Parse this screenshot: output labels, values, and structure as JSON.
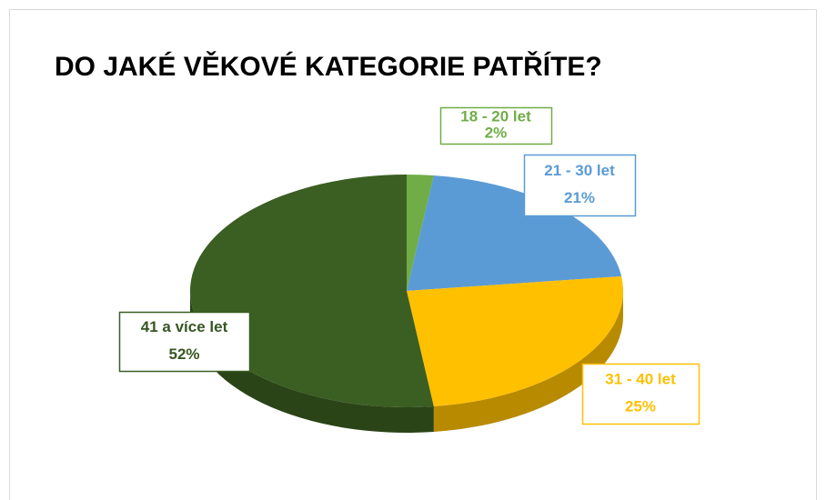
{
  "chart_data": {
    "type": "pie",
    "title": "DO JAKÉ VĚKOVÉ  KATEGORIE PATŘÍTE?",
    "categories": [
      "18 - 20 let",
      "21 - 30 let",
      "31 - 40 let",
      "41 a více let"
    ],
    "values": [
      2,
      21,
      25,
      52
    ],
    "value_labels": [
      "2%",
      "21%",
      "25%",
      "52%"
    ],
    "colors": [
      "#70ad47",
      "#5b9bd5",
      "#ffc000",
      "#3b5e22"
    ]
  }
}
